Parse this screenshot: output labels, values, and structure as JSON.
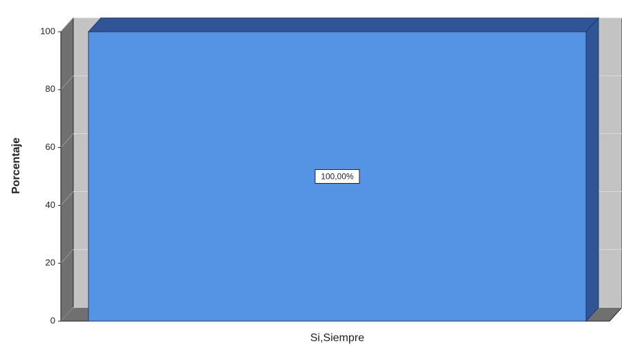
{
  "chart_data": {
    "type": "bar3d",
    "y_label": "Porcentaje",
    "categories": [
      "Si,Siempre"
    ],
    "values": [
      100
    ],
    "value_labels": [
      "100,00%"
    ],
    "color": "#5593e5",
    "ylim": [
      0,
      100
    ],
    "yticks": [
      0,
      20,
      40,
      60,
      80,
      100
    ],
    "grid": true
  }
}
